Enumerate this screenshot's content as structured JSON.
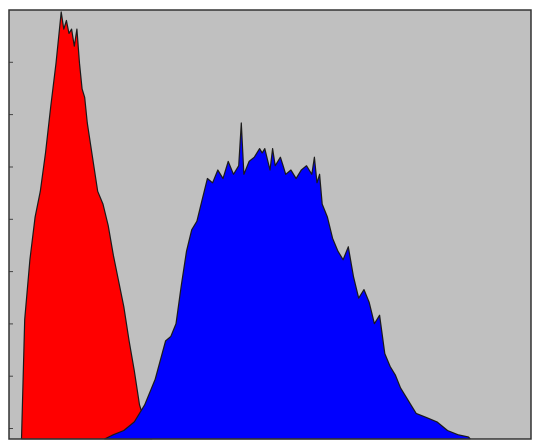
{
  "chart_data": {
    "type": "area",
    "title": "",
    "xlabel": "",
    "ylabel": "",
    "grid": false,
    "legend": "none",
    "xlim": [
      0,
      100
    ],
    "ylim": [
      0,
      100
    ],
    "background_color": "#c0c0c0",
    "series": [
      {
        "color": "#ff0000",
        "x": [
          2.4,
          3,
          4,
          5,
          6,
          7,
          8,
          9,
          10,
          10.5,
          11,
          11.5,
          12,
          12.5,
          13,
          13.5,
          14,
          14.5,
          15,
          16,
          17,
          18,
          19,
          20,
          21,
          22,
          23,
          24,
          25,
          26,
          27,
          27.4
        ],
        "y": [
          0,
          28,
          42,
          52,
          58,
          67,
          78,
          88,
          100,
          96,
          98,
          95,
          96,
          92,
          96,
          88,
          82,
          80,
          74,
          66,
          58,
          55,
          50,
          43,
          37,
          31,
          23,
          16,
          8,
          4,
          2,
          0
        ]
      },
      {
        "color": "#0000ff",
        "x": [
          18.3,
          20,
          22,
          24,
          26,
          28,
          30,
          31,
          32,
          33,
          34,
          35,
          36,
          37,
          38,
          39,
          40,
          41,
          42,
          43,
          44,
          44.5,
          45,
          46,
          47,
          48,
          48.5,
          49,
          50,
          50.5,
          51,
          52,
          52.5,
          53,
          54,
          55,
          56,
          57,
          58,
          58.5,
          59,
          59.5,
          60,
          61,
          62,
          63,
          64,
          65,
          66,
          67,
          68,
          69,
          70,
          71,
          72,
          73,
          74,
          75,
          76,
          77,
          78,
          80,
          82,
          84,
          86,
          88,
          88.4
        ],
        "y": [
          0,
          1,
          2,
          4,
          8,
          14,
          23,
          24,
          27,
          36,
          44,
          49,
          51,
          56,
          61,
          60,
          63,
          61,
          65,
          62,
          64,
          74,
          62,
          65,
          66,
          68,
          67,
          68,
          63,
          68,
          64,
          66,
          64,
          62,
          63,
          61,
          63,
          64,
          62,
          66,
          60,
          62,
          55,
          52,
          47,
          44,
          42,
          45,
          38,
          33,
          35,
          32,
          27,
          29,
          20,
          17,
          15,
          12,
          10,
          8,
          6,
          5,
          4,
          2,
          1,
          0.5,
          0
        ]
      }
    ]
  }
}
